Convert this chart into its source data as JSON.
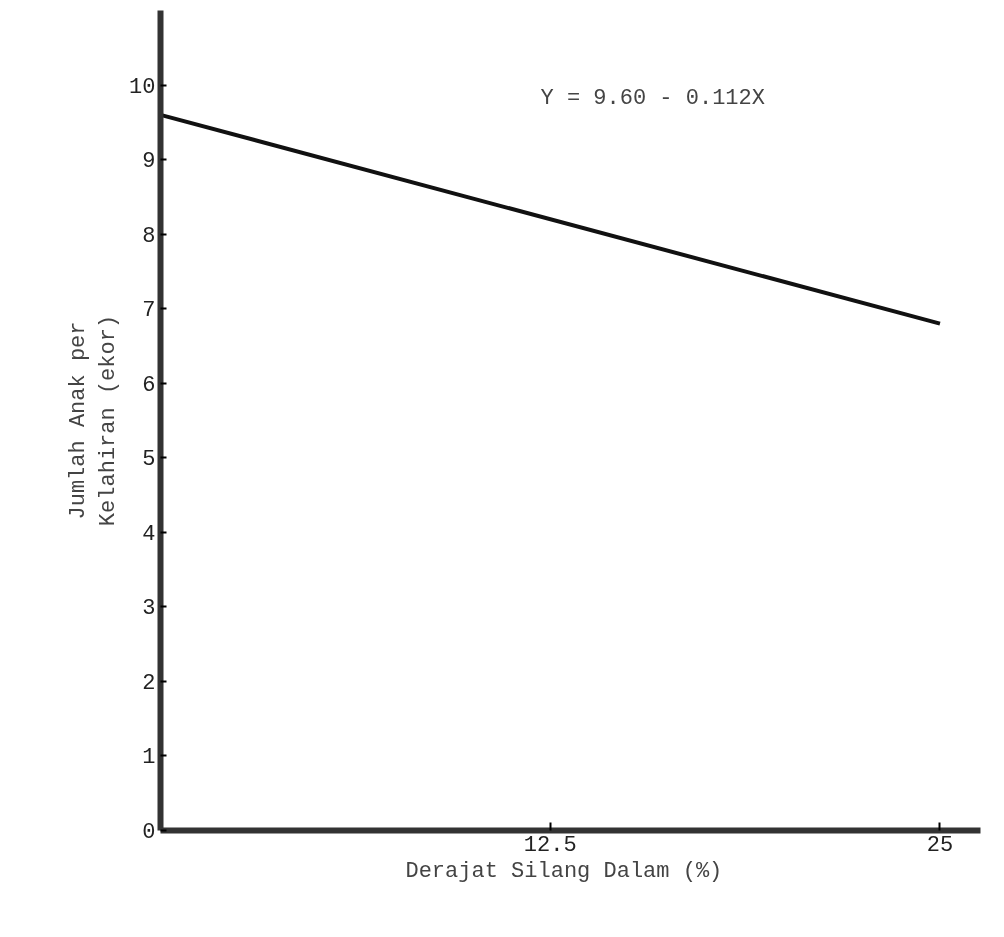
{
  "chart_data": {
    "type": "line",
    "xlabel": "Derajat Silang Dalam  (%)",
    "ylabel": "Jumlah Anak per\nKelahiran (ekor)",
    "annotations": [
      "Y = 9.60 - 0.112X"
    ],
    "x": [
      0,
      25
    ],
    "series": [
      {
        "color": "#111111",
        "values": [
          9.6,
          6.8
        ]
      }
    ],
    "xlim": [
      0,
      26.3
    ],
    "ylim": [
      0,
      11
    ],
    "xticks": [
      12.5,
      25
    ],
    "yticks": [
      0,
      1,
      2,
      3,
      4,
      5,
      6,
      7,
      8,
      9,
      10
    ],
    "grid": false,
    "marker": "none",
    "line_style": "solid"
  }
}
